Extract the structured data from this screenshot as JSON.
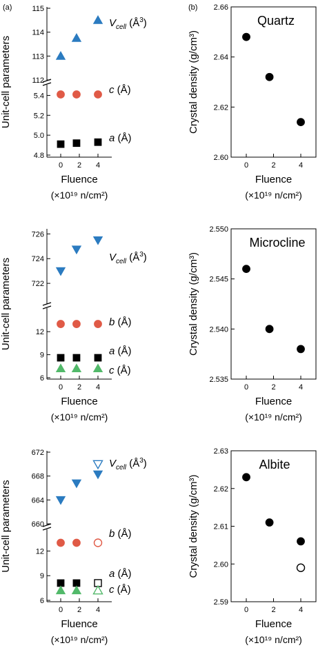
{
  "panel_labels": {
    "left": "(a)",
    "right": "(b)"
  },
  "colors": {
    "blue": "#2b7bc0",
    "red": "#e05a46",
    "green": "#52b96a",
    "black": "#000000"
  },
  "chart_data": [
    {
      "id": "quartz-cell",
      "type": "scatter",
      "ylabel": "Unit-cell parameters",
      "xlabel": "Fluence",
      "xunit": "(×10¹⁹ n/cm²)",
      "xticks": [
        0,
        2,
        4
      ],
      "segments": [
        {
          "ylim": [
            112,
            115
          ],
          "yticks": [
            112,
            113,
            114,
            115
          ]
        },
        {
          "ylim": [
            4.8,
            5.5
          ],
          "yticks": [
            4.8,
            5.0,
            5.2,
            5.4
          ],
          "ytick_labels": [
            "4.8",
            "5.0",
            "5.2",
            "5.4"
          ]
        }
      ],
      "series": [
        {
          "name": "V",
          "sub": "cell",
          "unit": "(Å",
          "sup": "3",
          "close": ")",
          "marker": "triangle-up",
          "color": "blue",
          "segment": 0,
          "x": [
            0,
            1.7,
            4
          ],
          "y": [
            113.0,
            113.75,
            114.5
          ],
          "open": [
            false,
            false,
            false
          ]
        },
        {
          "name": "c",
          "unit": "(Å)",
          "marker": "circle",
          "color": "red",
          "segment": 1,
          "x": [
            0,
            1.7,
            4
          ],
          "y": [
            5.41,
            5.41,
            5.41
          ],
          "open": [
            false,
            false,
            false
          ]
        },
        {
          "name": "a",
          "unit": "(Å)",
          "marker": "square",
          "color": "black",
          "segment": 1,
          "x": [
            0,
            1.7,
            4
          ],
          "y": [
            4.91,
            4.92,
            4.93
          ],
          "open": [
            false,
            false,
            false
          ]
        }
      ]
    },
    {
      "id": "quartz-density",
      "type": "scatter",
      "title": "Quartz",
      "ylabel": "Crystal density (g/cm³)",
      "xlabel": "Fluence",
      "xunit": "(×10¹⁹ n/cm²)",
      "xticks": [
        0,
        2,
        4
      ],
      "ylim": [
        2.6,
        2.66
      ],
      "yticks": [
        2.6,
        2.62,
        2.64,
        2.66
      ],
      "ytick_labels": [
        "2.60",
        "2.62",
        "2.64",
        "2.66"
      ],
      "x": [
        0,
        1.7,
        4
      ],
      "y": [
        2.648,
        2.632,
        2.614
      ],
      "open": [
        false,
        false,
        false
      ]
    },
    {
      "id": "microcline-cell",
      "type": "scatter",
      "ylabel": "Unit-cell parameters",
      "xlabel": "Fluence",
      "xunit": "(×10¹⁹ n/cm²)",
      "xticks": [
        0,
        2,
        4
      ],
      "segments": [
        {
          "ylim": [
            720.5,
            726.3
          ],
          "yticks": [
            722,
            724,
            726
          ]
        },
        {
          "ylim": [
            6,
            14.8
          ],
          "yticks": [
            6,
            9,
            12
          ]
        }
      ],
      "series": [
        {
          "name": "V",
          "sub": "cell",
          "unit": "(Å",
          "sup": "3",
          "close": ")",
          "marker": "triangle-down",
          "color": "blue",
          "segment": 0,
          "x": [
            0,
            1.7,
            4
          ],
          "y": [
            723.0,
            724.75,
            725.5
          ],
          "open": [
            false,
            false,
            false
          ]
        },
        {
          "name": "b",
          "unit": "(Å)",
          "marker": "circle",
          "color": "red",
          "segment": 1,
          "x": [
            0,
            1.7,
            4
          ],
          "y": [
            13.0,
            13.0,
            13.0
          ],
          "open": [
            false,
            false,
            false
          ]
        },
        {
          "name": "a",
          "unit": "(Å)",
          "marker": "square",
          "color": "black",
          "segment": 1,
          "x": [
            0,
            1.7,
            4
          ],
          "y": [
            8.6,
            8.6,
            8.6
          ],
          "open": [
            false,
            false,
            false
          ]
        },
        {
          "name": "c",
          "unit": "(Å)",
          "marker": "triangle-up",
          "color": "green",
          "segment": 1,
          "x": [
            0,
            1.7,
            4
          ],
          "y": [
            7.2,
            7.2,
            7.2
          ],
          "open": [
            false,
            false,
            false
          ]
        }
      ]
    },
    {
      "id": "microcline-density",
      "type": "scatter",
      "title": "Microcline",
      "ylabel": "Crystal density (g/cm³)",
      "xlabel": "Fluence",
      "xunit": "(×10¹⁹ n/cm²)",
      "xticks": [
        0,
        2,
        4
      ],
      "ylim": [
        2.535,
        2.55
      ],
      "yticks": [
        2.535,
        2.54,
        2.545,
        2.55
      ],
      "ytick_labels": [
        "2.535",
        "2.540",
        "2.545",
        "2.550"
      ],
      "x": [
        0,
        1.7,
        4
      ],
      "y": [
        2.546,
        2.54,
        2.538
      ],
      "open": [
        false,
        false,
        false
      ]
    },
    {
      "id": "albite-cell",
      "type": "scatter",
      "ylabel": "Unit-cell parameters",
      "xlabel": "Fluence",
      "xunit": "(×10¹⁹ n/cm²)",
      "xticks": [
        0,
        2,
        4
      ],
      "segments": [
        {
          "ylim": [
            660,
            672
          ],
          "yticks": [
            660,
            664,
            668,
            672
          ]
        },
        {
          "ylim": [
            6,
            14.3
          ],
          "yticks": [
            6,
            9,
            12
          ]
        }
      ],
      "series": [
        {
          "name": "V",
          "sub": "cell",
          "unit": "(Å",
          "sup": "3",
          "close": ")",
          "marker": "triangle-down",
          "color": "blue",
          "segment": 0,
          "x": [
            0,
            1.7,
            4,
            4
          ],
          "y": [
            664.0,
            666.8,
            668.3,
            670.0
          ],
          "open": [
            false,
            false,
            false,
            true
          ]
        },
        {
          "name": "b",
          "unit": "(Å)",
          "marker": "circle",
          "color": "red",
          "segment": 1,
          "x": [
            0,
            1.7,
            4
          ],
          "y": [
            13.0,
            13.0,
            13.0
          ],
          "open": [
            false,
            false,
            true
          ]
        },
        {
          "name": "a",
          "unit": "(Å)",
          "marker": "square",
          "color": "black",
          "segment": 1,
          "x": [
            0,
            1.7,
            4
          ],
          "y": [
            8.1,
            8.1,
            8.1
          ],
          "open": [
            false,
            false,
            true
          ]
        },
        {
          "name": "c",
          "unit": "(Å)",
          "marker": "triangle-up",
          "color": "green",
          "segment": 1,
          "x": [
            0,
            1.7,
            4
          ],
          "y": [
            7.2,
            7.2,
            7.2
          ],
          "open": [
            false,
            false,
            true
          ]
        }
      ]
    },
    {
      "id": "albite-density",
      "type": "scatter",
      "title": "Albite",
      "ylabel": "Crystal density (g/cm³)",
      "xlabel": "Fluence",
      "xunit": "(×10¹⁹ n/cm²)",
      "xticks": [
        0,
        2,
        4
      ],
      "ylim": [
        2.59,
        2.63
      ],
      "yticks": [
        2.59,
        2.6,
        2.61,
        2.62,
        2.63
      ],
      "ytick_labels": [
        "2.59",
        "2.60",
        "2.61",
        "2.62",
        "2.63"
      ],
      "x": [
        0,
        1.7,
        4,
        4
      ],
      "y": [
        2.623,
        2.611,
        2.606,
        2.599
      ],
      "open": [
        false,
        false,
        false,
        true
      ]
    }
  ]
}
